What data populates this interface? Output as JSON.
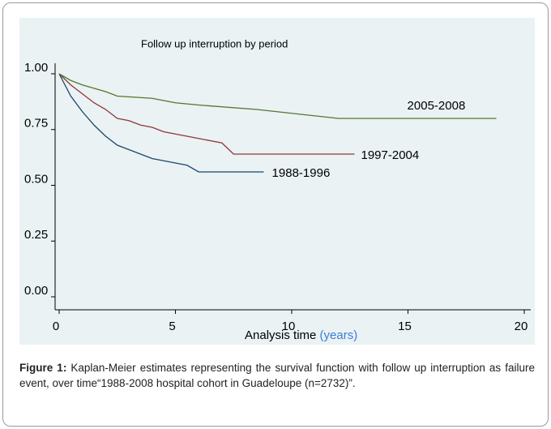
{
  "chart_data": {
    "type": "line",
    "step": true,
    "title": "Follow up interruption by period",
    "x_label": "Analysis time",
    "x_label_unit": "(years)",
    "xlim": [
      0,
      20
    ],
    "xticks": [
      0,
      5,
      10,
      15,
      20
    ],
    "ylim": [
      0,
      1
    ],
    "yticks": [
      {
        "value": 0,
        "label": "0.00"
      },
      {
        "value": 0.25,
        "label": "0.25"
      },
      {
        "value": 0.5,
        "label": "0.50"
      },
      {
        "value": 0.75,
        "label": "0.75"
      },
      {
        "value": 1,
        "label": "1.00"
      }
    ],
    "series": [
      {
        "name": "1988-1996",
        "color": "#1a476f",
        "x": [
          0,
          0.25,
          0.5,
          1,
          1.5,
          2,
          2.5,
          3,
          3.5,
          4,
          4.5,
          5,
          5.5,
          6,
          8.8
        ],
        "values": [
          1,
          0.95,
          0.9,
          0.83,
          0.77,
          0.72,
          0.68,
          0.66,
          0.64,
          0.62,
          0.61,
          0.6,
          0.59,
          0.56,
          0.56
        ]
      },
      {
        "name": "1997-2004",
        "color": "#90353b",
        "x": [
          0,
          0.5,
          1,
          1.5,
          2,
          2.5,
          3,
          3.5,
          4,
          4.5,
          5,
          6,
          7,
          7.5,
          12.7
        ],
        "values": [
          1,
          0.95,
          0.91,
          0.87,
          0.84,
          0.8,
          0.79,
          0.77,
          0.76,
          0.74,
          0.73,
          0.71,
          0.69,
          0.64,
          0.64
        ]
      },
      {
        "name": "2005-2008",
        "color": "#55752f",
        "x": [
          0,
          0.5,
          1,
          2,
          2.5,
          4,
          5,
          6,
          8.5,
          12,
          18.8
        ],
        "values": [
          1,
          0.97,
          0.95,
          0.92,
          0.9,
          0.89,
          0.87,
          0.86,
          0.84,
          0.8,
          0.8
        ]
      }
    ]
  },
  "caption": {
    "label": "Figure 1:",
    "text": "Kaplan-Meier estimates representing the survival function with follow up interruption as failure event, over time“1988-2008 hospital cohort in Guadeloupe (n=2732)”."
  }
}
